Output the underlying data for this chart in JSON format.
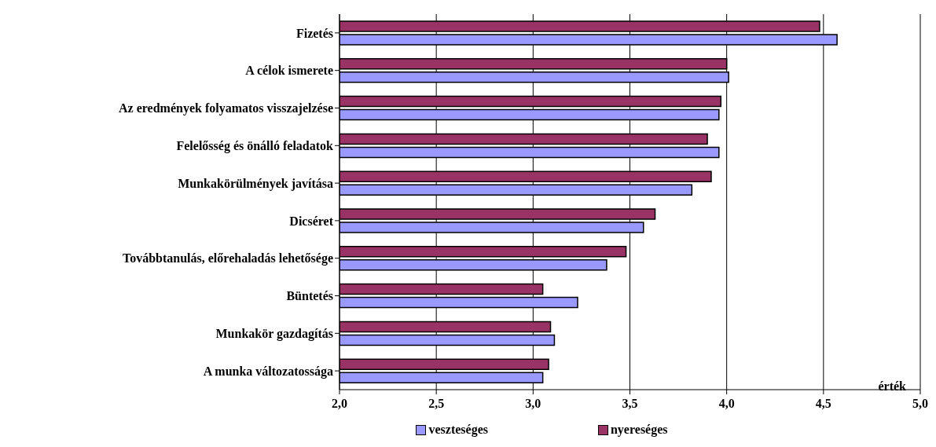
{
  "chart_data": {
    "type": "bar",
    "orientation": "horizontal",
    "xlabel": "érték",
    "categories": [
      "Fizetés",
      "A célok ismerete",
      "Az eredmények folyamatos visszajelzése",
      "Felelősség és önálló feladatok",
      "Munkakörülmények javítása",
      "Dicséret",
      "Továbbtanulás, előrehaladás lehetősége",
      "Büntetés",
      "Munkakör gazdagítás",
      "A munka változatossága"
    ],
    "series": [
      {
        "name": "veszteséges",
        "color": "#9999ff",
        "values": [
          4.57,
          4.01,
          3.96,
          3.96,
          3.82,
          3.57,
          3.38,
          3.23,
          3.11,
          3.05
        ]
      },
      {
        "name": "nyereséges",
        "color": "#993366",
        "values": [
          4.48,
          4.0,
          3.97,
          3.9,
          3.92,
          3.63,
          3.48,
          3.05,
          3.09,
          3.08
        ]
      }
    ],
    "xlim": [
      2,
      5
    ],
    "xticks": [
      {
        "value": 2,
        "label": "2,0"
      },
      {
        "value": 2.5,
        "label": "2,5"
      },
      {
        "value": 3,
        "label": "3,0"
      },
      {
        "value": 3.5,
        "label": "3,5"
      },
      {
        "value": 4,
        "label": "4,0"
      },
      {
        "value": 4.5,
        "label": "4,5"
      },
      {
        "value": 5,
        "label": "5,0"
      }
    ],
    "grid": "x",
    "legend": "bottom"
  }
}
